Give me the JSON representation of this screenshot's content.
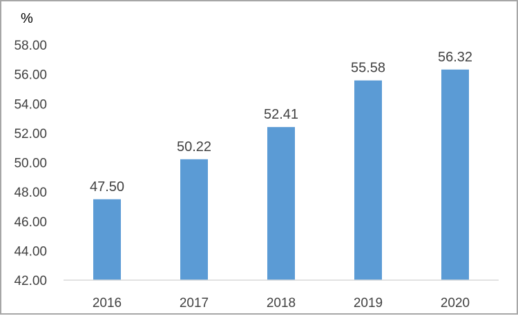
{
  "chart_data": {
    "type": "bar",
    "title": "",
    "xlabel": "",
    "ylabel": "%",
    "categories": [
      "2016",
      "2017",
      "2018",
      "2019",
      "2020"
    ],
    "values": [
      47.5,
      50.22,
      52.41,
      55.58,
      56.32
    ],
    "data_labels": [
      "47.50",
      "50.22",
      "52.41",
      "55.58",
      "56.32"
    ],
    "ylim": [
      42,
      58
    ],
    "yticks": [
      "42.00",
      "44.00",
      "46.00",
      "48.00",
      "50.00",
      "52.00",
      "54.00",
      "56.00",
      "58.00"
    ],
    "grid": false,
    "legend": "none",
    "bar_color": "#5b9bd5",
    "axis_color": "#d9d9d9"
  }
}
